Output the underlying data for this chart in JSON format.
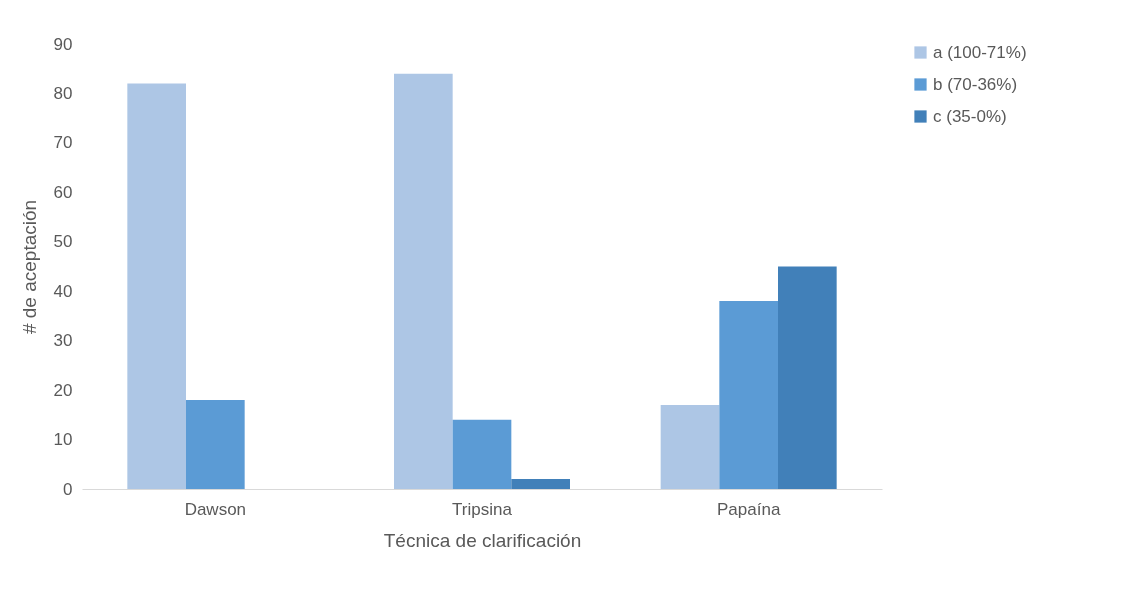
{
  "chart_data": {
    "type": "bar",
    "xlabel": "Técnica de clarificación",
    "ylabel": "# de aceptación",
    "categories": [
      "Dawson",
      "Tripsina",
      "Papaína"
    ],
    "series": [
      {
        "name": "a (100-71%)",
        "color": "#adc6e5",
        "values": [
          82,
          84,
          17
        ]
      },
      {
        "name": "b (70-36%)",
        "color": "#5b9bd5",
        "values": [
          18,
          14,
          38
        ]
      },
      {
        "name": "c (35-0%)",
        "color": "#4180b9",
        "values": [
          0,
          2,
          45
        ]
      }
    ],
    "ylim": [
      0,
      90
    ],
    "yticks": [
      0,
      10,
      20,
      30,
      40,
      50,
      60,
      70,
      80,
      90
    ],
    "grid": false,
    "legend": "right"
  }
}
